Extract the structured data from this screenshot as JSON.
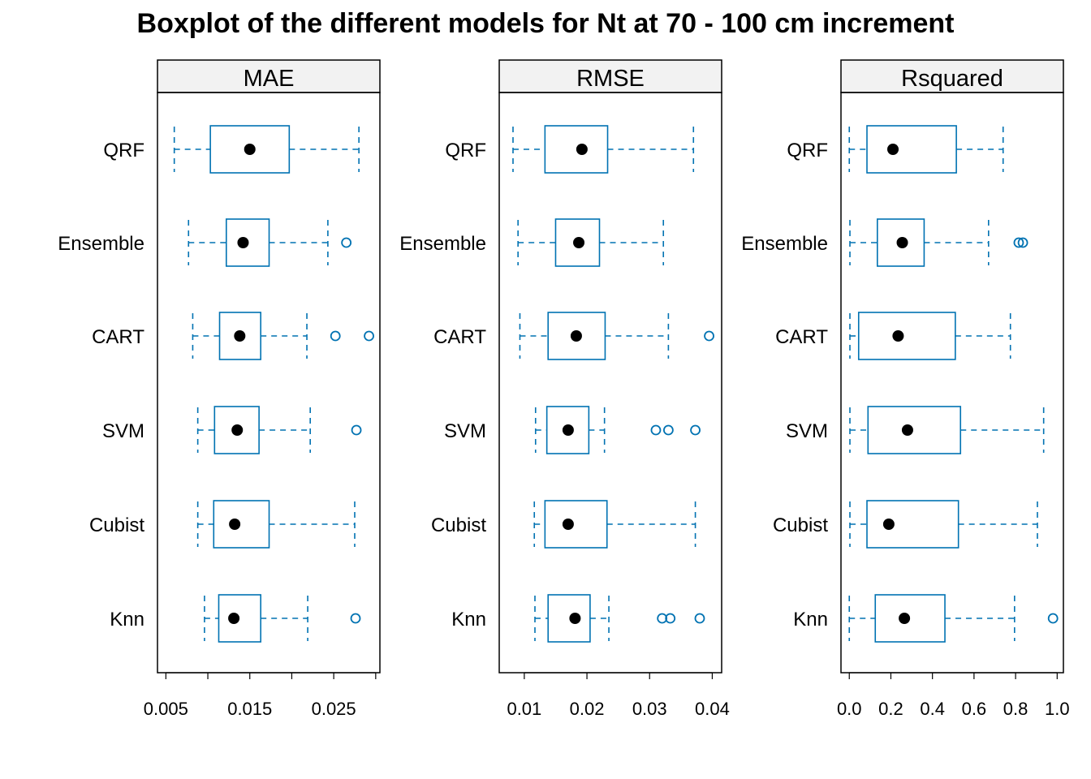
{
  "title": "Boxplot of the different models for Nt at 70 - 100 cm increment",
  "colors": {
    "box": "#0072B2",
    "median": "#000000",
    "strip": "#F2F2F2",
    "frame": "#000000"
  },
  "chart_data": [
    {
      "type": "boxplot",
      "panel": "MAE",
      "categories": [
        "QRF",
        "Ensemble",
        "CART",
        "SVM",
        "Cubist",
        "Knn"
      ],
      "xlim": [
        0.004,
        0.0305
      ],
      "ticks": [
        0.005,
        0.01,
        0.015,
        0.02,
        0.025,
        0.03
      ],
      "tick_labels": [
        "0.005",
        "",
        "0.015",
        "",
        "0.025",
        ""
      ],
      "boxes": [
        {
          "category": "QRF",
          "whisker_low": 0.006,
          "q1": 0.0103,
          "median": 0.015,
          "q3": 0.0197,
          "whisker_high": 0.028,
          "outliers": []
        },
        {
          "category": "Ensemble",
          "whisker_low": 0.0077,
          "q1": 0.0122,
          "median": 0.0142,
          "q3": 0.0173,
          "whisker_high": 0.0243,
          "outliers": [
            0.0265
          ]
        },
        {
          "category": "CART",
          "whisker_low": 0.0082,
          "q1": 0.0114,
          "median": 0.0138,
          "q3": 0.0163,
          "whisker_high": 0.0218,
          "outliers": [
            0.0252,
            0.0292
          ]
        },
        {
          "category": "SVM",
          "whisker_low": 0.0088,
          "q1": 0.0108,
          "median": 0.0135,
          "q3": 0.0161,
          "whisker_high": 0.0222,
          "outliers": [
            0.0277
          ]
        },
        {
          "category": "Cubist",
          "whisker_low": 0.0088,
          "q1": 0.0107,
          "median": 0.0132,
          "q3": 0.0173,
          "whisker_high": 0.0275,
          "outliers": []
        },
        {
          "category": "Knn",
          "whisker_low": 0.0096,
          "q1": 0.0113,
          "median": 0.0131,
          "q3": 0.0163,
          "whisker_high": 0.0219,
          "outliers": [
            0.0276
          ]
        }
      ]
    },
    {
      "type": "boxplot",
      "panel": "RMSE",
      "categories": [
        "QRF",
        "Ensemble",
        "CART",
        "SVM",
        "Cubist",
        "Knn"
      ],
      "xlim": [
        0.006,
        0.0415
      ],
      "ticks": [
        0.01,
        0.02,
        0.03,
        0.04
      ],
      "tick_labels": [
        "0.01",
        "0.02",
        "0.03",
        "0.04"
      ],
      "boxes": [
        {
          "category": "QRF",
          "whisker_low": 0.0082,
          "q1": 0.0133,
          "median": 0.0192,
          "q3": 0.0233,
          "whisker_high": 0.037,
          "outliers": []
        },
        {
          "category": "Ensemble",
          "whisker_low": 0.009,
          "q1": 0.015,
          "median": 0.0187,
          "q3": 0.022,
          "whisker_high": 0.0322,
          "outliers": []
        },
        {
          "category": "CART",
          "whisker_low": 0.0093,
          "q1": 0.0138,
          "median": 0.0183,
          "q3": 0.0229,
          "whisker_high": 0.033,
          "outliers": [
            0.0395
          ]
        },
        {
          "category": "SVM",
          "whisker_low": 0.0118,
          "q1": 0.0136,
          "median": 0.017,
          "q3": 0.0203,
          "whisker_high": 0.0228,
          "outliers": [
            0.031,
            0.033,
            0.0373
          ]
        },
        {
          "category": "Cubist",
          "whisker_low": 0.0116,
          "q1": 0.0133,
          "median": 0.017,
          "q3": 0.0232,
          "whisker_high": 0.0373,
          "outliers": []
        },
        {
          "category": "Knn",
          "whisker_low": 0.0117,
          "q1": 0.0138,
          "median": 0.0181,
          "q3": 0.0205,
          "whisker_high": 0.0235,
          "outliers": [
            0.032,
            0.0333,
            0.038
          ]
        }
      ]
    },
    {
      "type": "boxplot",
      "panel": "Rsquared",
      "categories": [
        "QRF",
        "Ensemble",
        "CART",
        "SVM",
        "Cubist",
        "Knn"
      ],
      "xlim": [
        -0.04,
        1.03
      ],
      "ticks": [
        0.0,
        0.2,
        0.4,
        0.6,
        0.8,
        1.0
      ],
      "tick_labels": [
        "0.0",
        "0.2",
        "0.4",
        "0.6",
        "0.8",
        "1.0"
      ],
      "boxes": [
        {
          "category": "QRF",
          "whisker_low": 0.0,
          "q1": 0.085,
          "median": 0.21,
          "q3": 0.515,
          "whisker_high": 0.74,
          "outliers": []
        },
        {
          "category": "Ensemble",
          "whisker_low": 0.003,
          "q1": 0.135,
          "median": 0.255,
          "q3": 0.36,
          "whisker_high": 0.67,
          "outliers": [
            0.815,
            0.835
          ]
        },
        {
          "category": "CART",
          "whisker_low": 0.003,
          "q1": 0.045,
          "median": 0.235,
          "q3": 0.51,
          "whisker_high": 0.775,
          "outliers": []
        },
        {
          "category": "SVM",
          "whisker_low": 0.003,
          "q1": 0.09,
          "median": 0.28,
          "q3": 0.535,
          "whisker_high": 0.935,
          "outliers": []
        },
        {
          "category": "Cubist",
          "whisker_low": 0.003,
          "q1": 0.085,
          "median": 0.19,
          "q3": 0.525,
          "whisker_high": 0.905,
          "outliers": []
        },
        {
          "category": "Knn",
          "whisker_low": 0.0,
          "q1": 0.125,
          "median": 0.265,
          "q3": 0.46,
          "whisker_high": 0.795,
          "outliers": [
            0.98
          ]
        }
      ]
    }
  ]
}
